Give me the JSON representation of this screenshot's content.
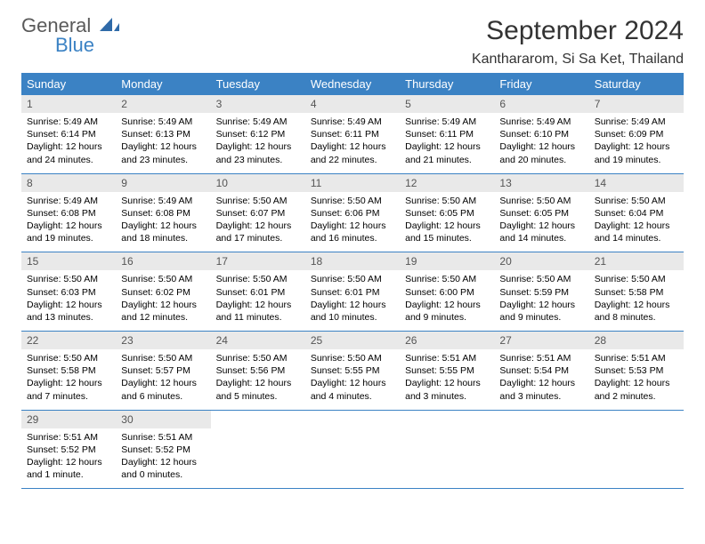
{
  "brand": {
    "name1": "General",
    "name2": "Blue"
  },
  "title": "September 2024",
  "location": "Kanthararom, Si Sa Ket, Thailand",
  "colors": {
    "header_bg": "#3b82c4",
    "header_text": "#ffffff",
    "daynum_bg": "#e9e9e9",
    "rule": "#3b82c4",
    "text": "#000000"
  },
  "typography": {
    "title_fontsize": 30,
    "location_fontsize": 16,
    "dayhead_fontsize": 13,
    "body_fontsize": 10.5
  },
  "day_names": [
    "Sunday",
    "Monday",
    "Tuesday",
    "Wednesday",
    "Thursday",
    "Friday",
    "Saturday"
  ],
  "weeks": [
    [
      {
        "n": "1",
        "sr": "Sunrise: 5:49 AM",
        "ss": "Sunset: 6:14 PM",
        "d1": "Daylight: 12 hours",
        "d2": "and 24 minutes."
      },
      {
        "n": "2",
        "sr": "Sunrise: 5:49 AM",
        "ss": "Sunset: 6:13 PM",
        "d1": "Daylight: 12 hours",
        "d2": "and 23 minutes."
      },
      {
        "n": "3",
        "sr": "Sunrise: 5:49 AM",
        "ss": "Sunset: 6:12 PM",
        "d1": "Daylight: 12 hours",
        "d2": "and 23 minutes."
      },
      {
        "n": "4",
        "sr": "Sunrise: 5:49 AM",
        "ss": "Sunset: 6:11 PM",
        "d1": "Daylight: 12 hours",
        "d2": "and 22 minutes."
      },
      {
        "n": "5",
        "sr": "Sunrise: 5:49 AM",
        "ss": "Sunset: 6:11 PM",
        "d1": "Daylight: 12 hours",
        "d2": "and 21 minutes."
      },
      {
        "n": "6",
        "sr": "Sunrise: 5:49 AM",
        "ss": "Sunset: 6:10 PM",
        "d1": "Daylight: 12 hours",
        "d2": "and 20 minutes."
      },
      {
        "n": "7",
        "sr": "Sunrise: 5:49 AM",
        "ss": "Sunset: 6:09 PM",
        "d1": "Daylight: 12 hours",
        "d2": "and 19 minutes."
      }
    ],
    [
      {
        "n": "8",
        "sr": "Sunrise: 5:49 AM",
        "ss": "Sunset: 6:08 PM",
        "d1": "Daylight: 12 hours",
        "d2": "and 19 minutes."
      },
      {
        "n": "9",
        "sr": "Sunrise: 5:49 AM",
        "ss": "Sunset: 6:08 PM",
        "d1": "Daylight: 12 hours",
        "d2": "and 18 minutes."
      },
      {
        "n": "10",
        "sr": "Sunrise: 5:50 AM",
        "ss": "Sunset: 6:07 PM",
        "d1": "Daylight: 12 hours",
        "d2": "and 17 minutes."
      },
      {
        "n": "11",
        "sr": "Sunrise: 5:50 AM",
        "ss": "Sunset: 6:06 PM",
        "d1": "Daylight: 12 hours",
        "d2": "and 16 minutes."
      },
      {
        "n": "12",
        "sr": "Sunrise: 5:50 AM",
        "ss": "Sunset: 6:05 PM",
        "d1": "Daylight: 12 hours",
        "d2": "and 15 minutes."
      },
      {
        "n": "13",
        "sr": "Sunrise: 5:50 AM",
        "ss": "Sunset: 6:05 PM",
        "d1": "Daylight: 12 hours",
        "d2": "and 14 minutes."
      },
      {
        "n": "14",
        "sr": "Sunrise: 5:50 AM",
        "ss": "Sunset: 6:04 PM",
        "d1": "Daylight: 12 hours",
        "d2": "and 14 minutes."
      }
    ],
    [
      {
        "n": "15",
        "sr": "Sunrise: 5:50 AM",
        "ss": "Sunset: 6:03 PM",
        "d1": "Daylight: 12 hours",
        "d2": "and 13 minutes."
      },
      {
        "n": "16",
        "sr": "Sunrise: 5:50 AM",
        "ss": "Sunset: 6:02 PM",
        "d1": "Daylight: 12 hours",
        "d2": "and 12 minutes."
      },
      {
        "n": "17",
        "sr": "Sunrise: 5:50 AM",
        "ss": "Sunset: 6:01 PM",
        "d1": "Daylight: 12 hours",
        "d2": "and 11 minutes."
      },
      {
        "n": "18",
        "sr": "Sunrise: 5:50 AM",
        "ss": "Sunset: 6:01 PM",
        "d1": "Daylight: 12 hours",
        "d2": "and 10 minutes."
      },
      {
        "n": "19",
        "sr": "Sunrise: 5:50 AM",
        "ss": "Sunset: 6:00 PM",
        "d1": "Daylight: 12 hours",
        "d2": "and 9 minutes."
      },
      {
        "n": "20",
        "sr": "Sunrise: 5:50 AM",
        "ss": "Sunset: 5:59 PM",
        "d1": "Daylight: 12 hours",
        "d2": "and 9 minutes."
      },
      {
        "n": "21",
        "sr": "Sunrise: 5:50 AM",
        "ss": "Sunset: 5:58 PM",
        "d1": "Daylight: 12 hours",
        "d2": "and 8 minutes."
      }
    ],
    [
      {
        "n": "22",
        "sr": "Sunrise: 5:50 AM",
        "ss": "Sunset: 5:58 PM",
        "d1": "Daylight: 12 hours",
        "d2": "and 7 minutes."
      },
      {
        "n": "23",
        "sr": "Sunrise: 5:50 AM",
        "ss": "Sunset: 5:57 PM",
        "d1": "Daylight: 12 hours",
        "d2": "and 6 minutes."
      },
      {
        "n": "24",
        "sr": "Sunrise: 5:50 AM",
        "ss": "Sunset: 5:56 PM",
        "d1": "Daylight: 12 hours",
        "d2": "and 5 minutes."
      },
      {
        "n": "25",
        "sr": "Sunrise: 5:50 AM",
        "ss": "Sunset: 5:55 PM",
        "d1": "Daylight: 12 hours",
        "d2": "and 4 minutes."
      },
      {
        "n": "26",
        "sr": "Sunrise: 5:51 AM",
        "ss": "Sunset: 5:55 PM",
        "d1": "Daylight: 12 hours",
        "d2": "and 3 minutes."
      },
      {
        "n": "27",
        "sr": "Sunrise: 5:51 AM",
        "ss": "Sunset: 5:54 PM",
        "d1": "Daylight: 12 hours",
        "d2": "and 3 minutes."
      },
      {
        "n": "28",
        "sr": "Sunrise: 5:51 AM",
        "ss": "Sunset: 5:53 PM",
        "d1": "Daylight: 12 hours",
        "d2": "and 2 minutes."
      }
    ],
    [
      {
        "n": "29",
        "sr": "Sunrise: 5:51 AM",
        "ss": "Sunset: 5:52 PM",
        "d1": "Daylight: 12 hours",
        "d2": "and 1 minute."
      },
      {
        "n": "30",
        "sr": "Sunrise: 5:51 AM",
        "ss": "Sunset: 5:52 PM",
        "d1": "Daylight: 12 hours",
        "d2": "and 0 minutes."
      },
      {
        "empty": true
      },
      {
        "empty": true
      },
      {
        "empty": true
      },
      {
        "empty": true
      },
      {
        "empty": true
      }
    ]
  ]
}
